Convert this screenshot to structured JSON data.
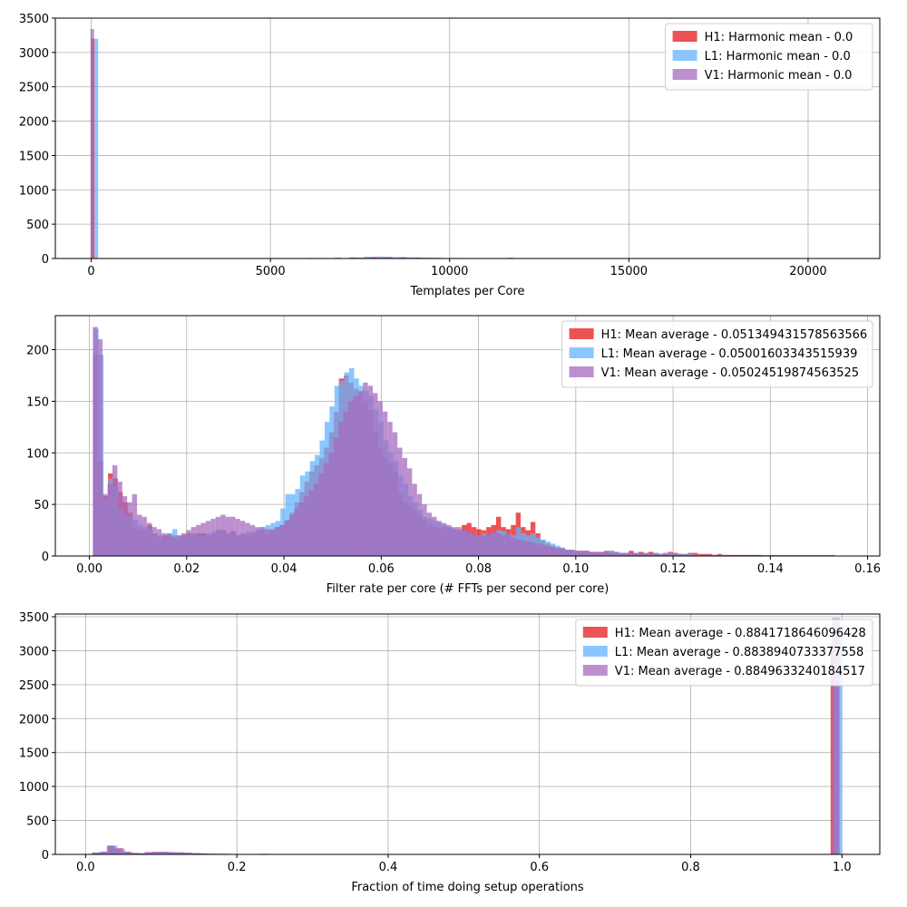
{
  "chart_data": [
    {
      "type": "histogram",
      "xlabel": "Templates per Core",
      "xlim": [
        -1000,
        22000
      ],
      "ylim": [
        0,
        3500
      ],
      "xticks": [
        0,
        5000,
        10000,
        15000,
        20000
      ],
      "xtick_labels": [
        "0",
        "5000",
        "10000",
        "15000",
        "20000"
      ],
      "yticks": [
        0,
        500,
        1000,
        1500,
        2000,
        2500,
        3000,
        3500
      ],
      "ytick_labels": [
        "0",
        "500",
        "1000",
        "1500",
        "2000",
        "2500",
        "3000",
        "3500"
      ],
      "grid": true,
      "legend_position": "top-right",
      "series": [
        {
          "name": "H1: Harmonic mean  - 0.0",
          "color": "#e41a1c",
          "opacity": 0.75,
          "bins": [
            [
              -5,
              95,
              3200
            ],
            [
              5500,
              5700,
              4
            ],
            [
              6200,
              6400,
              5
            ],
            [
              7000,
              7200,
              6
            ],
            [
              7400,
              7600,
              12
            ],
            [
              7600,
              7800,
              18
            ],
            [
              7800,
              8000,
              22
            ],
            [
              8000,
              8200,
              20
            ],
            [
              8200,
              8400,
              16
            ],
            [
              8600,
              8800,
              14
            ],
            [
              9000,
              9200,
              10
            ],
            [
              9600,
              9800,
              8
            ],
            [
              10000,
              10200,
              6
            ]
          ]
        },
        {
          "name": "L1: Harmonic mean  - 0.0",
          "color": "#66b3ff",
          "opacity": 0.75,
          "bins": [
            [
              95,
              195,
              3200
            ],
            [
              5000,
              5200,
              8
            ],
            [
              6000,
              6200,
              10
            ],
            [
              6800,
              7000,
              14
            ],
            [
              7200,
              7400,
              18
            ],
            [
              7600,
              7800,
              26
            ],
            [
              8000,
              8200,
              28
            ],
            [
              8400,
              8600,
              22
            ],
            [
              8800,
              9000,
              18
            ],
            [
              9200,
              9400,
              14
            ],
            [
              9600,
              9800,
              10
            ],
            [
              10200,
              10400,
              8
            ],
            [
              11600,
              11800,
              12
            ]
          ]
        },
        {
          "name": "V1: Harmonic mean  - 0.0",
          "color": "#a66bbf",
          "opacity": 0.75,
          "bins": [
            [
              -20,
              80,
              3340
            ],
            [
              5400,
              5600,
              6
            ],
            [
              6400,
              6600,
              8
            ],
            [
              7200,
              7400,
              14
            ],
            [
              7800,
              8000,
              20
            ],
            [
              8200,
              8400,
              24
            ],
            [
              8600,
              8800,
              20
            ],
            [
              9000,
              9200,
              16
            ],
            [
              9400,
              9600,
              12
            ],
            [
              10000,
              10200,
              8
            ]
          ]
        }
      ]
    },
    {
      "type": "histogram",
      "xlabel": "Filter rate per core (# FFTs per second per core)",
      "xlim": [
        -0.007,
        0.1625
      ],
      "ylim": [
        0,
        233
      ],
      "xticks": [
        0.0,
        0.02,
        0.04,
        0.06,
        0.08,
        0.1,
        0.12,
        0.14,
        0.16
      ],
      "xtick_labels": [
        "0.00",
        "0.02",
        "0.04",
        "0.06",
        "0.08",
        "0.10",
        "0.12",
        "0.14",
        "0.16"
      ],
      "yticks": [
        0,
        50,
        100,
        150,
        200
      ],
      "ytick_labels": [
        "0",
        "50",
        "100",
        "150",
        "200"
      ],
      "grid": true,
      "legend_position": "top-right",
      "series": [
        {
          "name": "H1: Mean average - 0.051349431578563566",
          "color": "#e41a1c",
          "opacity": 0.75,
          "start": 0.0008,
          "bin_width": 0.00101,
          "values": [
            195,
            92,
            58,
            80,
            75,
            62,
            52,
            42,
            28,
            25,
            25,
            30,
            22,
            18,
            20,
            22,
            20,
            18,
            20,
            22,
            20,
            22,
            22,
            20,
            22,
            25,
            25,
            22,
            24,
            20,
            22,
            20,
            22,
            24,
            25,
            22,
            25,
            28,
            30,
            35,
            42,
            52,
            62,
            72,
            82,
            88,
            95,
            105,
            120,
            140,
            172,
            175,
            168,
            162,
            158,
            150,
            142,
            120,
            105,
            95,
            90,
            82,
            60,
            52,
            48,
            44,
            40,
            35,
            30,
            28,
            27,
            28,
            28,
            26,
            25,
            30,
            32,
            28,
            26,
            25,
            28,
            30,
            38,
            28,
            26,
            30,
            42,
            28,
            25,
            33,
            22,
            15,
            12,
            10,
            8,
            8,
            6,
            6,
            5,
            5,
            5,
            4,
            4,
            4,
            5,
            5,
            4,
            3,
            3,
            5,
            3,
            4,
            3,
            4,
            3,
            2,
            3,
            4,
            3,
            2,
            2,
            3,
            3,
            2,
            2,
            2,
            1,
            2,
            1,
            1,
            1,
            1,
            1,
            1,
            1,
            1
          ]
        },
        {
          "name": "L1: Mean average - 0.05001603343515939",
          "color": "#66b3ff",
          "opacity": 0.75,
          "start": 0.0009,
          "bin_width": 0.00101,
          "values": [
            220,
            195,
            55,
            75,
            68,
            45,
            40,
            38,
            35,
            30,
            28,
            26,
            22,
            20,
            18,
            22,
            26,
            20,
            18,
            22,
            22,
            20,
            20,
            22,
            24,
            26,
            24,
            22,
            22,
            20,
            22,
            24,
            24,
            26,
            28,
            30,
            32,
            34,
            46,
            60,
            60,
            65,
            78,
            82,
            92,
            98,
            112,
            130,
            145,
            165,
            170,
            178,
            182,
            172,
            165,
            160,
            155,
            142,
            130,
            112,
            100,
            92,
            78,
            70,
            58,
            52,
            45,
            38,
            36,
            34,
            32,
            30,
            28,
            26,
            26,
            24,
            22,
            20,
            20,
            22,
            20,
            22,
            25,
            24,
            22,
            20,
            28,
            22,
            20,
            22,
            18,
            16,
            14,
            12,
            10,
            8,
            6,
            6,
            5,
            4,
            4,
            4,
            3,
            4,
            4,
            5,
            4,
            3,
            3,
            3,
            3,
            2,
            3,
            2,
            3,
            2,
            3,
            3,
            2,
            2,
            2,
            2,
            1,
            1,
            1,
            1,
            1,
            1
          ]
        },
        {
          "name": "V1: Mean average - 0.05024519874563525",
          "color": "#a66bbf",
          "opacity": 0.75,
          "start": 0.0007,
          "bin_width": 0.00101,
          "values": [
            222,
            210,
            60,
            70,
            88,
            72,
            58,
            52,
            60,
            40,
            38,
            32,
            28,
            26,
            22,
            20,
            18,
            20,
            22,
            25,
            28,
            30,
            32,
            34,
            36,
            38,
            40,
            38,
            38,
            36,
            34,
            32,
            30,
            28,
            28,
            26,
            26,
            28,
            30,
            34,
            40,
            46,
            52,
            58,
            64,
            70,
            80,
            90,
            100,
            115,
            130,
            140,
            150,
            155,
            160,
            168,
            165,
            158,
            150,
            140,
            130,
            120,
            105,
            95,
            85,
            70,
            60,
            50,
            42,
            38,
            34,
            32,
            30,
            28,
            28,
            26,
            24,
            22,
            20,
            20,
            22,
            24,
            22,
            20,
            22,
            18,
            16,
            15,
            14,
            13,
            12,
            11,
            10,
            9,
            8,
            7,
            6,
            6,
            5,
            5,
            5,
            4,
            4,
            4,
            4,
            3,
            3,
            3,
            3,
            3,
            3,
            2,
            2,
            2,
            2,
            2,
            2,
            2,
            2,
            2,
            1,
            1,
            1,
            1,
            1,
            1,
            1,
            1,
            1,
            1,
            1,
            1,
            1,
            1,
            1,
            1,
            1,
            1,
            1,
            1,
            1,
            1,
            1,
            1,
            1,
            1,
            1,
            1,
            1,
            1,
            1
          ]
        }
      ]
    },
    {
      "type": "histogram",
      "xlabel": "Fraction of time doing setup operations",
      "xlim": [
        -0.04,
        1.05
      ],
      "ylim": [
        0,
        3540
      ],
      "xticks": [
        0.0,
        0.2,
        0.4,
        0.6,
        0.8,
        1.0
      ],
      "xtick_labels": [
        "0.0",
        "0.2",
        "0.4",
        "0.6",
        "0.8",
        "1.0"
      ],
      "yticks": [
        0,
        500,
        1000,
        1500,
        2000,
        2500,
        3000,
        3500
      ],
      "ytick_labels": [
        "0",
        "500",
        "1000",
        "1500",
        "2000",
        "2500",
        "3000",
        "3500"
      ],
      "grid": true,
      "legend_position": "top-right",
      "series": [
        {
          "name": "H1: Mean average - 0.8841718646096428",
          "color": "#e41a1c",
          "opacity": 0.75,
          "start": 0.01,
          "bin_width": 0.01,
          "values": [
            20,
            30,
            120,
            90,
            40,
            20,
            15,
            30,
            35,
            35,
            30,
            30,
            25,
            20,
            15,
            10,
            8,
            8,
            6,
            6,
            5,
            5,
            4,
            4,
            3,
            4,
            4,
            3,
            3,
            3
          ]
        },
        {
          "name": "L1: Mean average - 0.8838940733377558",
          "color": "#66b3ff",
          "opacity": 0.75,
          "start": 0.012,
          "bin_width": 0.01,
          "values": [
            20,
            40,
            130,
            80,
            30,
            20,
            18,
            28,
            30,
            32,
            30,
            28,
            22,
            18,
            14,
            10,
            8,
            8,
            6,
            6,
            5,
            5,
            10,
            4,
            3,
            3,
            3,
            3,
            3,
            3
          ]
        },
        {
          "name": "V1: Mean average - 0.8849633240184517",
          "color": "#a66bbf",
          "opacity": 0.75,
          "start": 0.008,
          "bin_width": 0.01,
          "values": [
            30,
            40,
            130,
            80,
            35,
            25,
            20,
            35,
            40,
            40,
            35,
            30,
            25,
            20,
            15,
            10,
            8,
            8,
            6,
            6,
            5,
            5,
            4,
            4,
            3,
            3,
            3,
            3,
            3,
            3
          ]
        }
      ],
      "spike": [
        {
          "series": 0,
          "x0": 0.985,
          "x1": 0.995,
          "value": 3100
        },
        {
          "series": 1,
          "x0": 0.99,
          "x1": 1.0,
          "value": 3300
        },
        {
          "series": 2,
          "x0": 0.987,
          "x1": 0.997,
          "value": 3480
        }
      ]
    }
  ]
}
